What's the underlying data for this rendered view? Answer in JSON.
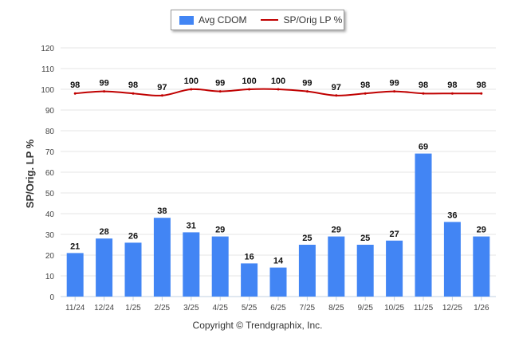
{
  "chart_data": {
    "type": "bar",
    "categories": [
      "11/24",
      "12/24",
      "1/25",
      "2/25",
      "3/25",
      "4/25",
      "5/25",
      "6/25",
      "7/25",
      "8/25",
      "9/25",
      "10/25",
      "11/25",
      "12/25",
      "1/26"
    ],
    "series": [
      {
        "name": "Avg CDOM",
        "type": "bar",
        "color": "#4285f4",
        "values": [
          21,
          28,
          26,
          38,
          31,
          29,
          16,
          14,
          25,
          29,
          25,
          27,
          69,
          36,
          29
        ]
      },
      {
        "name": "SP/Orig LP %",
        "type": "line",
        "color": "#c00000",
        "values": [
          98,
          99,
          98,
          97,
          100,
          99,
          100,
          100,
          99,
          97,
          98,
          99,
          98,
          98,
          98
        ]
      }
    ],
    "ylabel": "SP/Orig. LP %",
    "xlabel": "",
    "ylim": [
      0,
      120
    ],
    "yticks": [
      0,
      10,
      20,
      30,
      40,
      50,
      60,
      70,
      80,
      90,
      100,
      110,
      120
    ],
    "grid": true,
    "legend": "top-center"
  },
  "footer": {
    "copyright": "Copyright © Trendgraphix, Inc."
  }
}
